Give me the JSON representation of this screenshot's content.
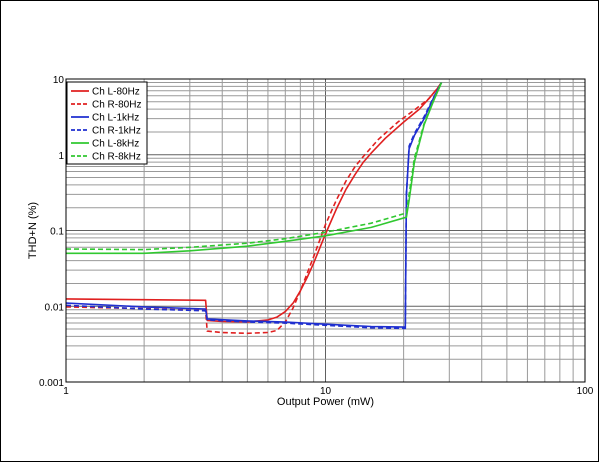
{
  "chart_data": {
    "type": "line",
    "title": "",
    "xlabel": "Output Power (mW)",
    "ylabel": "THD+N (%)",
    "xscale": "log",
    "yscale": "log",
    "xlim": [
      1,
      100
    ],
    "ylim": [
      0.001,
      10
    ],
    "grid": true,
    "legend_position": "top-left",
    "x_ticks": [
      {
        "value": 1,
        "label": "1"
      },
      {
        "value": 10,
        "label": "10"
      },
      {
        "value": 100,
        "label": "100"
      }
    ],
    "y_ticks": [
      {
        "value": 0.001,
        "label": "0.001"
      },
      {
        "value": 0.01,
        "label": "0.01"
      },
      {
        "value": 0.1,
        "label": "0.1"
      },
      {
        "value": 1,
        "label": "1"
      },
      {
        "value": 10,
        "label": "10"
      }
    ],
    "series": [
      {
        "name": "Ch L-80Hz",
        "color": "#e02020",
        "dash": "solid",
        "points": [
          [
            1,
            0.0125
          ],
          [
            2,
            0.0122
          ],
          [
            3.45,
            0.012
          ],
          [
            3.5,
            0.0065
          ],
          [
            4,
            0.0063
          ],
          [
            5,
            0.0062
          ],
          [
            6,
            0.0066
          ],
          [
            6.5,
            0.0072
          ],
          [
            7,
            0.0085
          ],
          [
            7.5,
            0.011
          ],
          [
            8,
            0.016
          ],
          [
            8.5,
            0.024
          ],
          [
            9,
            0.037
          ],
          [
            10,
            0.09
          ],
          [
            11,
            0.19
          ],
          [
            12,
            0.35
          ],
          [
            13,
            0.55
          ],
          [
            14,
            0.8
          ],
          [
            15,
            1.05
          ],
          [
            17,
            1.65
          ],
          [
            20,
            2.7
          ],
          [
            23,
            4.0
          ],
          [
            25,
            5.5
          ],
          [
            27,
            7.5
          ],
          [
            28,
            9.0
          ]
        ]
      },
      {
        "name": "Ch R-80Hz",
        "color": "#e02020",
        "dash": "dashed",
        "points": [
          [
            1,
            0.0098
          ],
          [
            2,
            0.0093
          ],
          [
            3.45,
            0.0088
          ],
          [
            3.5,
            0.0047
          ],
          [
            4,
            0.0045
          ],
          [
            5,
            0.0044
          ],
          [
            6,
            0.0045
          ],
          [
            6.5,
            0.0048
          ],
          [
            7,
            0.0062
          ],
          [
            7.5,
            0.0095
          ],
          [
            8,
            0.016
          ],
          [
            9,
            0.045
          ],
          [
            10,
            0.12
          ],
          [
            11,
            0.25
          ],
          [
            12,
            0.45
          ],
          [
            13,
            0.7
          ],
          [
            14,
            0.95
          ],
          [
            16,
            1.6
          ],
          [
            19,
            2.7
          ],
          [
            22,
            3.9
          ],
          [
            25,
            5.5
          ],
          [
            27,
            7.5
          ],
          [
            28,
            9.0
          ]
        ]
      },
      {
        "name": "Ch L-1kHz",
        "color": "#1f2fd0",
        "dash": "solid",
        "points": [
          [
            1,
            0.011
          ],
          [
            2,
            0.0098
          ],
          [
            3.45,
            0.0092
          ],
          [
            3.5,
            0.0068
          ],
          [
            5,
            0.0064
          ],
          [
            7,
            0.0062
          ],
          [
            10,
            0.0058
          ],
          [
            15,
            0.0054
          ],
          [
            20.3,
            0.0053
          ],
          [
            20.5,
            0.3
          ],
          [
            21,
            1.2
          ],
          [
            22,
            1.8
          ],
          [
            24,
            3.0
          ],
          [
            26,
            5.5
          ],
          [
            28,
            9.0
          ]
        ]
      },
      {
        "name": "Ch R-1kHz",
        "color": "#1f2fd0",
        "dash": "dashed",
        "points": [
          [
            1,
            0.0103
          ],
          [
            2,
            0.0092
          ],
          [
            3.45,
            0.0087
          ],
          [
            3.5,
            0.0066
          ],
          [
            5,
            0.0062
          ],
          [
            7,
            0.006
          ],
          [
            10,
            0.0056
          ],
          [
            15,
            0.0052
          ],
          [
            20.3,
            0.0051
          ],
          [
            20.5,
            0.3
          ],
          [
            21,
            1.3
          ],
          [
            22,
            1.9
          ],
          [
            24,
            3.2
          ],
          [
            26,
            5.6
          ],
          [
            28,
            9.0
          ]
        ]
      },
      {
        "name": "Ch L-8kHz",
        "color": "#30c830",
        "dash": "solid",
        "points": [
          [
            1,
            0.05
          ],
          [
            2,
            0.05
          ],
          [
            3,
            0.054
          ],
          [
            5,
            0.062
          ],
          [
            7,
            0.072
          ],
          [
            10,
            0.085
          ],
          [
            15,
            0.11
          ],
          [
            20.5,
            0.15
          ],
          [
            21,
            0.25
          ],
          [
            22,
            0.8
          ],
          [
            24,
            2.5
          ],
          [
            26,
            5.0
          ],
          [
            28,
            9.0
          ]
        ]
      },
      {
        "name": "Ch R-8kHz",
        "color": "#30c830",
        "dash": "dashed",
        "points": [
          [
            1,
            0.057
          ],
          [
            2,
            0.056
          ],
          [
            3,
            0.06
          ],
          [
            5,
            0.068
          ],
          [
            7,
            0.078
          ],
          [
            10,
            0.095
          ],
          [
            15,
            0.125
          ],
          [
            20.5,
            0.17
          ],
          [
            21,
            0.3
          ],
          [
            22,
            0.9
          ],
          [
            24,
            2.6
          ],
          [
            26,
            5.1
          ],
          [
            28,
            9.0
          ]
        ]
      }
    ]
  }
}
